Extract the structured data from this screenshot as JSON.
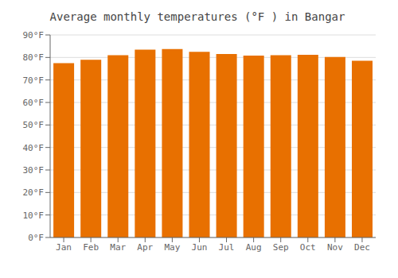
{
  "chart_data": {
    "type": "bar",
    "title": "Average monthly temperatures (°F ) in Bangar",
    "categories": [
      "Jan",
      "Feb",
      "Mar",
      "Apr",
      "May",
      "Jun",
      "Jul",
      "Aug",
      "Sep",
      "Oct",
      "Nov",
      "Dec"
    ],
    "values": [
      77.5,
      79.0,
      81.0,
      83.5,
      83.7,
      82.5,
      81.5,
      80.8,
      81.0,
      81.2,
      80.2,
      78.5
    ],
    "color": "#E87000",
    "ylim": [
      0,
      90
    ],
    "yticks": [
      {
        "value": 0,
        "label": "0°F"
      },
      {
        "value": 10,
        "label": "10°F"
      },
      {
        "value": 20,
        "label": "20°F"
      },
      {
        "value": 30,
        "label": "30°F"
      },
      {
        "value": 40,
        "label": "40°F"
      },
      {
        "value": 50,
        "label": "50°F"
      },
      {
        "value": 60,
        "label": "60°F"
      },
      {
        "value": 70,
        "label": "70°F"
      },
      {
        "value": 80,
        "label": "80°F"
      },
      {
        "value": 90,
        "label": "90°F"
      }
    ],
    "grid": true
  }
}
